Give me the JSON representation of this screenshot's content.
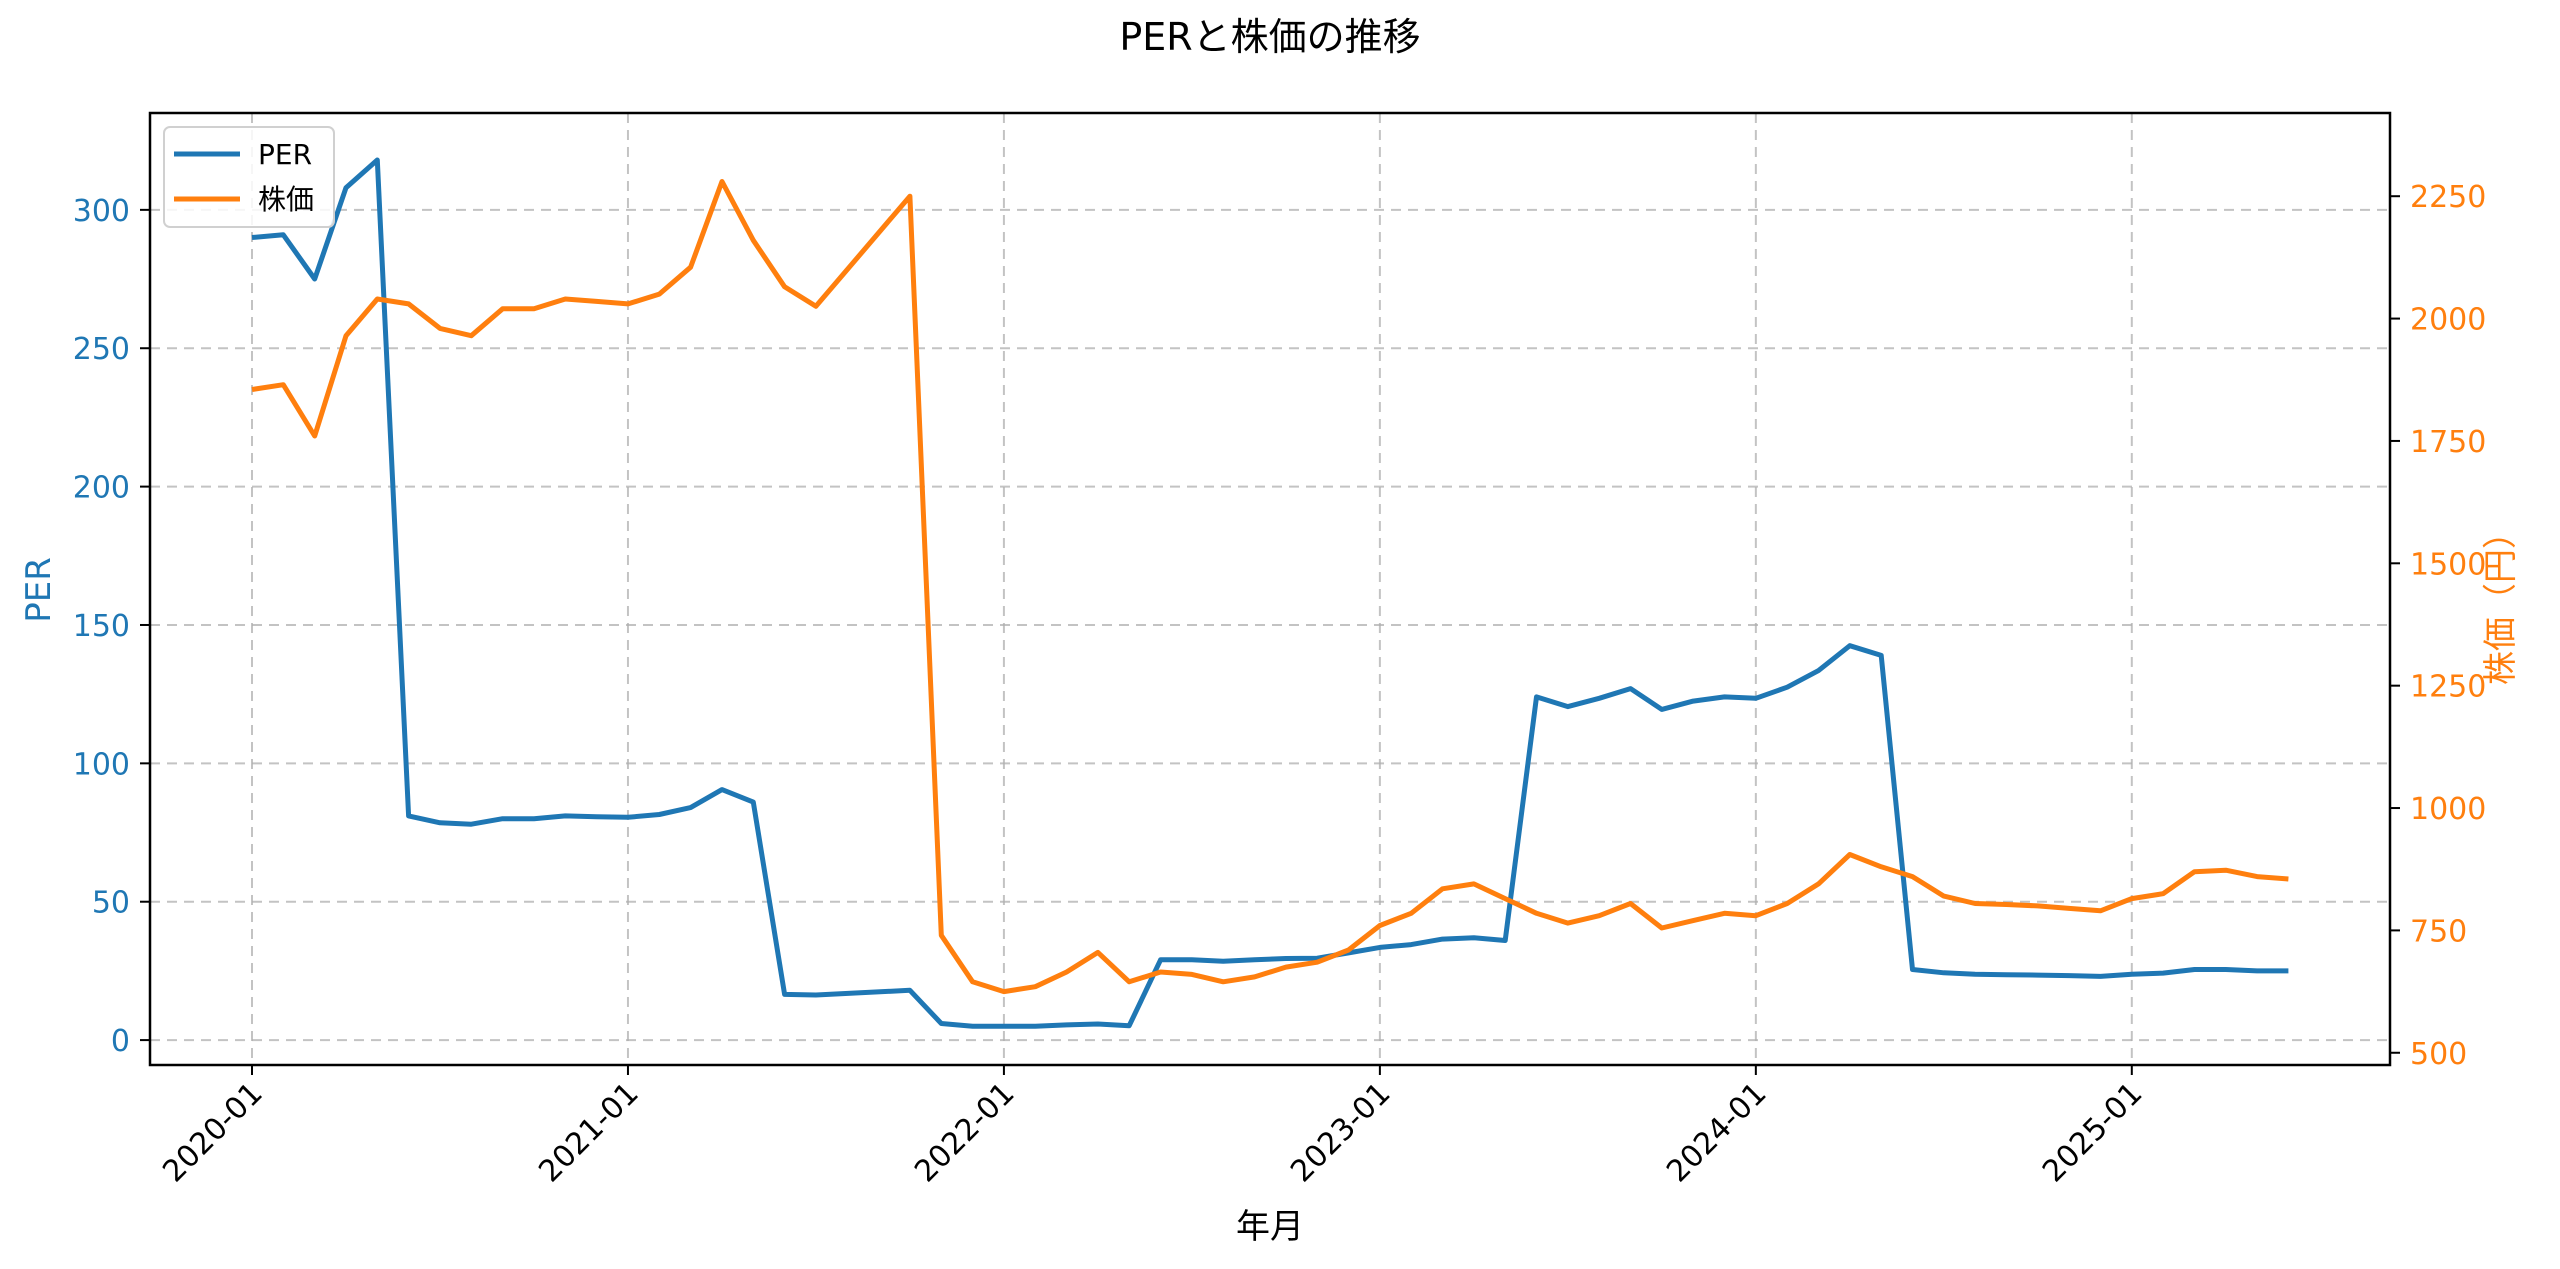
{
  "chart_data": {
    "type": "line",
    "title": "PERと株価の推移",
    "xlabel": "年月",
    "ylabel": "PER",
    "ylabel_right": "株価（円）",
    "x_tick_labels": [
      "2020-01",
      "2021-01",
      "2022-01",
      "2023-01",
      "2024-01",
      "2025-01"
    ],
    "yticks_left": [
      0,
      50,
      100,
      150,
      200,
      250,
      300
    ],
    "yticks_right": [
      500,
      750,
      1000,
      1250,
      1500,
      1750,
      2000,
      2250
    ],
    "ylim_left": [
      -9,
      335
    ],
    "ylim_right": [
      475,
      2420
    ],
    "grid": true,
    "legend_position": "upper left",
    "x": [
      "2020-01",
      "2020-02",
      "2020-03",
      "2020-04",
      "2020-05",
      "2020-06",
      "2020-07",
      "2020-08",
      "2020-09",
      "2020-10",
      "2020-11",
      "2020-12",
      "2021-01",
      "2021-02",
      "2021-03",
      "2021-04",
      "2021-05",
      "2021-06",
      "2021-07",
      "2021-10",
      "2021-11",
      "2021-12",
      "2022-01",
      "2022-02",
      "2022-03",
      "2022-04",
      "2022-05",
      "2022-06",
      "2022-07",
      "2022-08",
      "2022-09",
      "2022-10",
      "2022-11",
      "2022-12",
      "2023-01",
      "2023-02",
      "2023-03",
      "2023-04",
      "2023-05",
      "2023-06",
      "2023-07",
      "2023-08",
      "2023-09",
      "2023-10",
      "2023-11",
      "2023-12",
      "2024-01",
      "2024-02",
      "2024-03",
      "2024-04",
      "2024-05",
      "2024-06",
      "2024-07",
      "2024-08",
      "2024-09",
      "2024-10",
      "2024-11",
      "2024-12",
      "2025-01",
      "2025-02",
      "2025-03",
      "2025-04",
      "2025-05",
      "2025-06"
    ],
    "series": [
      {
        "name": "PER",
        "axis": "left",
        "color": "#1f77b4",
        "values": [
          290,
          291,
          275,
          308,
          318,
          81,
          78.5,
          78,
          80,
          80,
          81,
          80.7,
          80.5,
          81.5,
          84,
          90.5,
          86,
          16.5,
          16.3,
          18,
          6,
          5,
          5,
          5,
          5.5,
          5.8,
          5.2,
          29,
          29,
          28.5,
          29,
          29.5,
          29.6,
          31.5,
          33.5,
          34.5,
          36.5,
          37,
          36,
          124,
          120.5,
          123.5,
          127,
          119.5,
          122.5,
          124,
          123.5,
          127.5,
          133.5,
          142.5,
          139,
          25.5,
          24.3,
          23.8,
          23.6,
          23.5,
          23.3,
          23,
          23.8,
          24.2,
          25.5,
          25.5,
          25,
          25
        ]
      },
      {
        "name": "株価",
        "axis": "right",
        "color": "#ff7f0e",
        "values": [
          1855,
          1865,
          1760,
          1965,
          2040,
          2030,
          1980,
          1965,
          2020,
          2020,
          2040,
          2035,
          2030,
          2050,
          2105,
          2280,
          2160,
          2065,
          2025,
          2250,
          740,
          645,
          625,
          635,
          665,
          705,
          645,
          665,
          660,
          645,
          655,
          675,
          685,
          710,
          760,
          785,
          835,
          845,
          815,
          785,
          765,
          780,
          805,
          755,
          770,
          785,
          780,
          805,
          845,
          905,
          880,
          860,
          820,
          805,
          803,
          800,
          795,
          790,
          815,
          825,
          870,
          873,
          860,
          855
        ]
      }
    ]
  }
}
